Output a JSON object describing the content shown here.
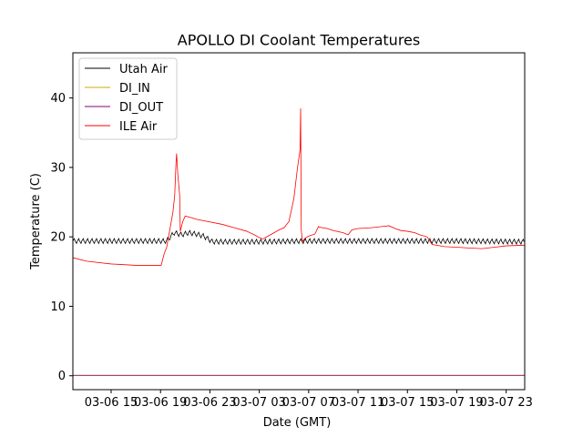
{
  "chart_data": {
    "type": "line",
    "title": "APOLLO DI Coolant Temperatures",
    "xlabel": "Date (GMT)",
    "ylabel": "Temperature (C)",
    "xlim": [
      11.9,
      48.5
    ],
    "ylim": [
      -2,
      46.5
    ],
    "x_ticks": [
      {
        "value": 15,
        "label": "03-06 15"
      },
      {
        "value": 19,
        "label": "03-06 19"
      },
      {
        "value": 23,
        "label": "03-06 23"
      },
      {
        "value": 27,
        "label": "03-07 03"
      },
      {
        "value": 31,
        "label": "03-07 07"
      },
      {
        "value": 35,
        "label": "03-07 11"
      },
      {
        "value": 39,
        "label": "03-07 15"
      },
      {
        "value": 43,
        "label": "03-07 19"
      },
      {
        "value": 47,
        "label": "03-07 23"
      }
    ],
    "y_ticks": [
      0,
      10,
      20,
      30,
      40
    ],
    "grid": false,
    "legend_position": "top-left",
    "series": [
      {
        "name": "Utah Air",
        "color": "#000000",
        "oscillation": 0.35,
        "x": [
          11.9,
          19.5,
          20.1,
          20.7,
          21.3,
          21.9,
          22.5,
          23.2,
          27.0,
          31.0,
          35.0,
          39.0,
          43.0,
          48.5
        ],
        "y": [
          19.4,
          19.4,
          20.6,
          20.3,
          20.6,
          20.4,
          20.1,
          19.3,
          19.3,
          19.4,
          19.4,
          19.4,
          19.4,
          19.3
        ]
      },
      {
        "name": "DI_IN",
        "color": "#cfa800",
        "x": [
          11.9,
          48.5
        ],
        "y": [
          0.1,
          0.1
        ]
      },
      {
        "name": "DI_OUT",
        "color": "#800080",
        "x": [
          11.9,
          48.5
        ],
        "y": [
          0.05,
          0.05
        ]
      },
      {
        "name": "ILE Air",
        "color": "#ff0000",
        "x": [
          11.9,
          13.0,
          15.0,
          17.0,
          19.05,
          19.3,
          19.5,
          19.8,
          20.0,
          20.15,
          20.25,
          20.3,
          20.4,
          20.55,
          20.6,
          20.8,
          21.0,
          22.0,
          24.0,
          25.0,
          26.0,
          26.7,
          27.0,
          27.3,
          27.6,
          27.9,
          28.2,
          28.6,
          29.0,
          29.4,
          29.8,
          30.1,
          30.3,
          30.35,
          30.4,
          30.5,
          30.7,
          31.0,
          31.5,
          31.8,
          31.85,
          32.5,
          33.0,
          33.8,
          34.2,
          34.5,
          35.0,
          36.0,
          37.0,
          37.5,
          38.0,
          38.5,
          39.0,
          39.3,
          39.6,
          40.0,
          40.6,
          41.0,
          42.0,
          44.0,
          45.0,
          46.0,
          47.0,
          48.5
        ],
        "y": [
          17.0,
          16.5,
          16.1,
          15.9,
          15.9,
          17.6,
          18.5,
          21.5,
          23.5,
          26.0,
          30.5,
          32.0,
          29.0,
          26.0,
          20.8,
          22.2,
          23.0,
          22.5,
          21.8,
          21.3,
          20.8,
          20.2,
          19.9,
          19.7,
          20.0,
          20.3,
          20.6,
          21.0,
          21.3,
          22.2,
          25.5,
          30.0,
          32.5,
          38.5,
          21.0,
          19.3,
          19.8,
          20.1,
          20.4,
          21.5,
          21.4,
          21.2,
          20.9,
          20.6,
          20.3,
          21.0,
          21.2,
          21.3,
          21.5,
          21.6,
          21.2,
          20.9,
          20.8,
          20.7,
          20.6,
          20.3,
          20.0,
          18.9,
          18.6,
          18.4,
          18.3,
          18.5,
          18.7,
          18.8
        ]
      }
    ]
  }
}
